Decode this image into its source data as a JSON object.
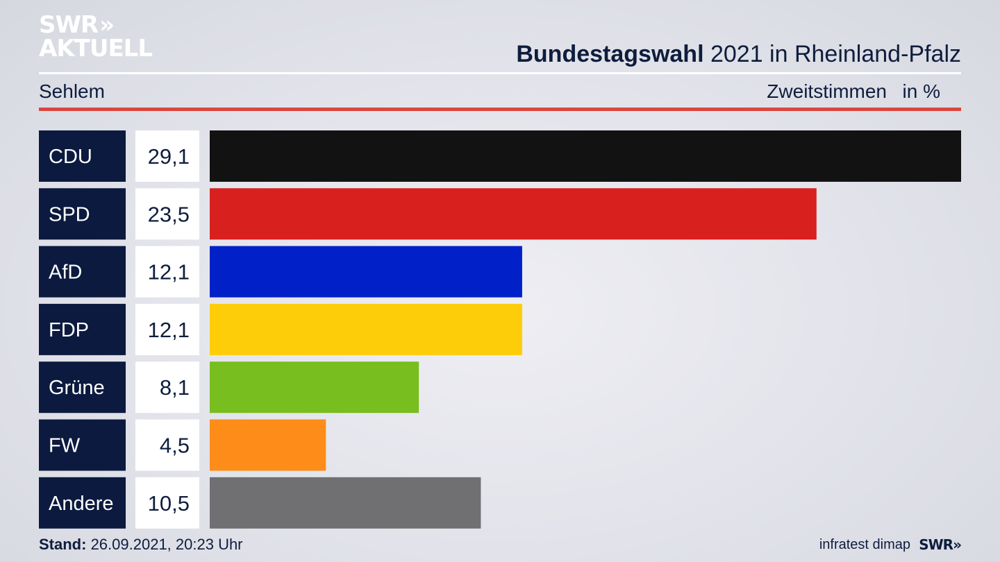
{
  "logo": {
    "line1": "SWR",
    "arrows": "»",
    "line2": "AKTUELL"
  },
  "header": {
    "title_bold": "Bundestagswahl",
    "title_rest": " 2021 in Rheinland-Pfalz",
    "region": "Sehlem",
    "vote_type": "Zweitstimmen",
    "unit": "in %"
  },
  "footer": {
    "stand_label": "Stand:",
    "stand_value": " 26.09.2021, 20:23 Uhr",
    "source": "infratest dimap",
    "logo": "SWR»"
  },
  "chart_data": {
    "type": "bar",
    "orientation": "horizontal",
    "categories": [
      "CDU",
      "SPD",
      "AfD",
      "FDP",
      "Grüne",
      "FW",
      "Andere"
    ],
    "values": [
      29.1,
      23.5,
      12.1,
      12.1,
      8.1,
      4.5,
      10.5
    ],
    "value_labels": [
      "29,1",
      "23,5",
      "12,1",
      "12,1",
      "8,1",
      "4,5",
      "10,5"
    ],
    "colors": [
      "#121212",
      "#d8201f",
      "#0220c8",
      "#fecd0a",
      "#78be1e",
      "#fd8c18",
      "#707072"
    ],
    "label_background": "#0b1a3e",
    "value_background": "#ffffff",
    "xlim": [
      0,
      29.1
    ],
    "grid": false,
    "legend": "none"
  }
}
